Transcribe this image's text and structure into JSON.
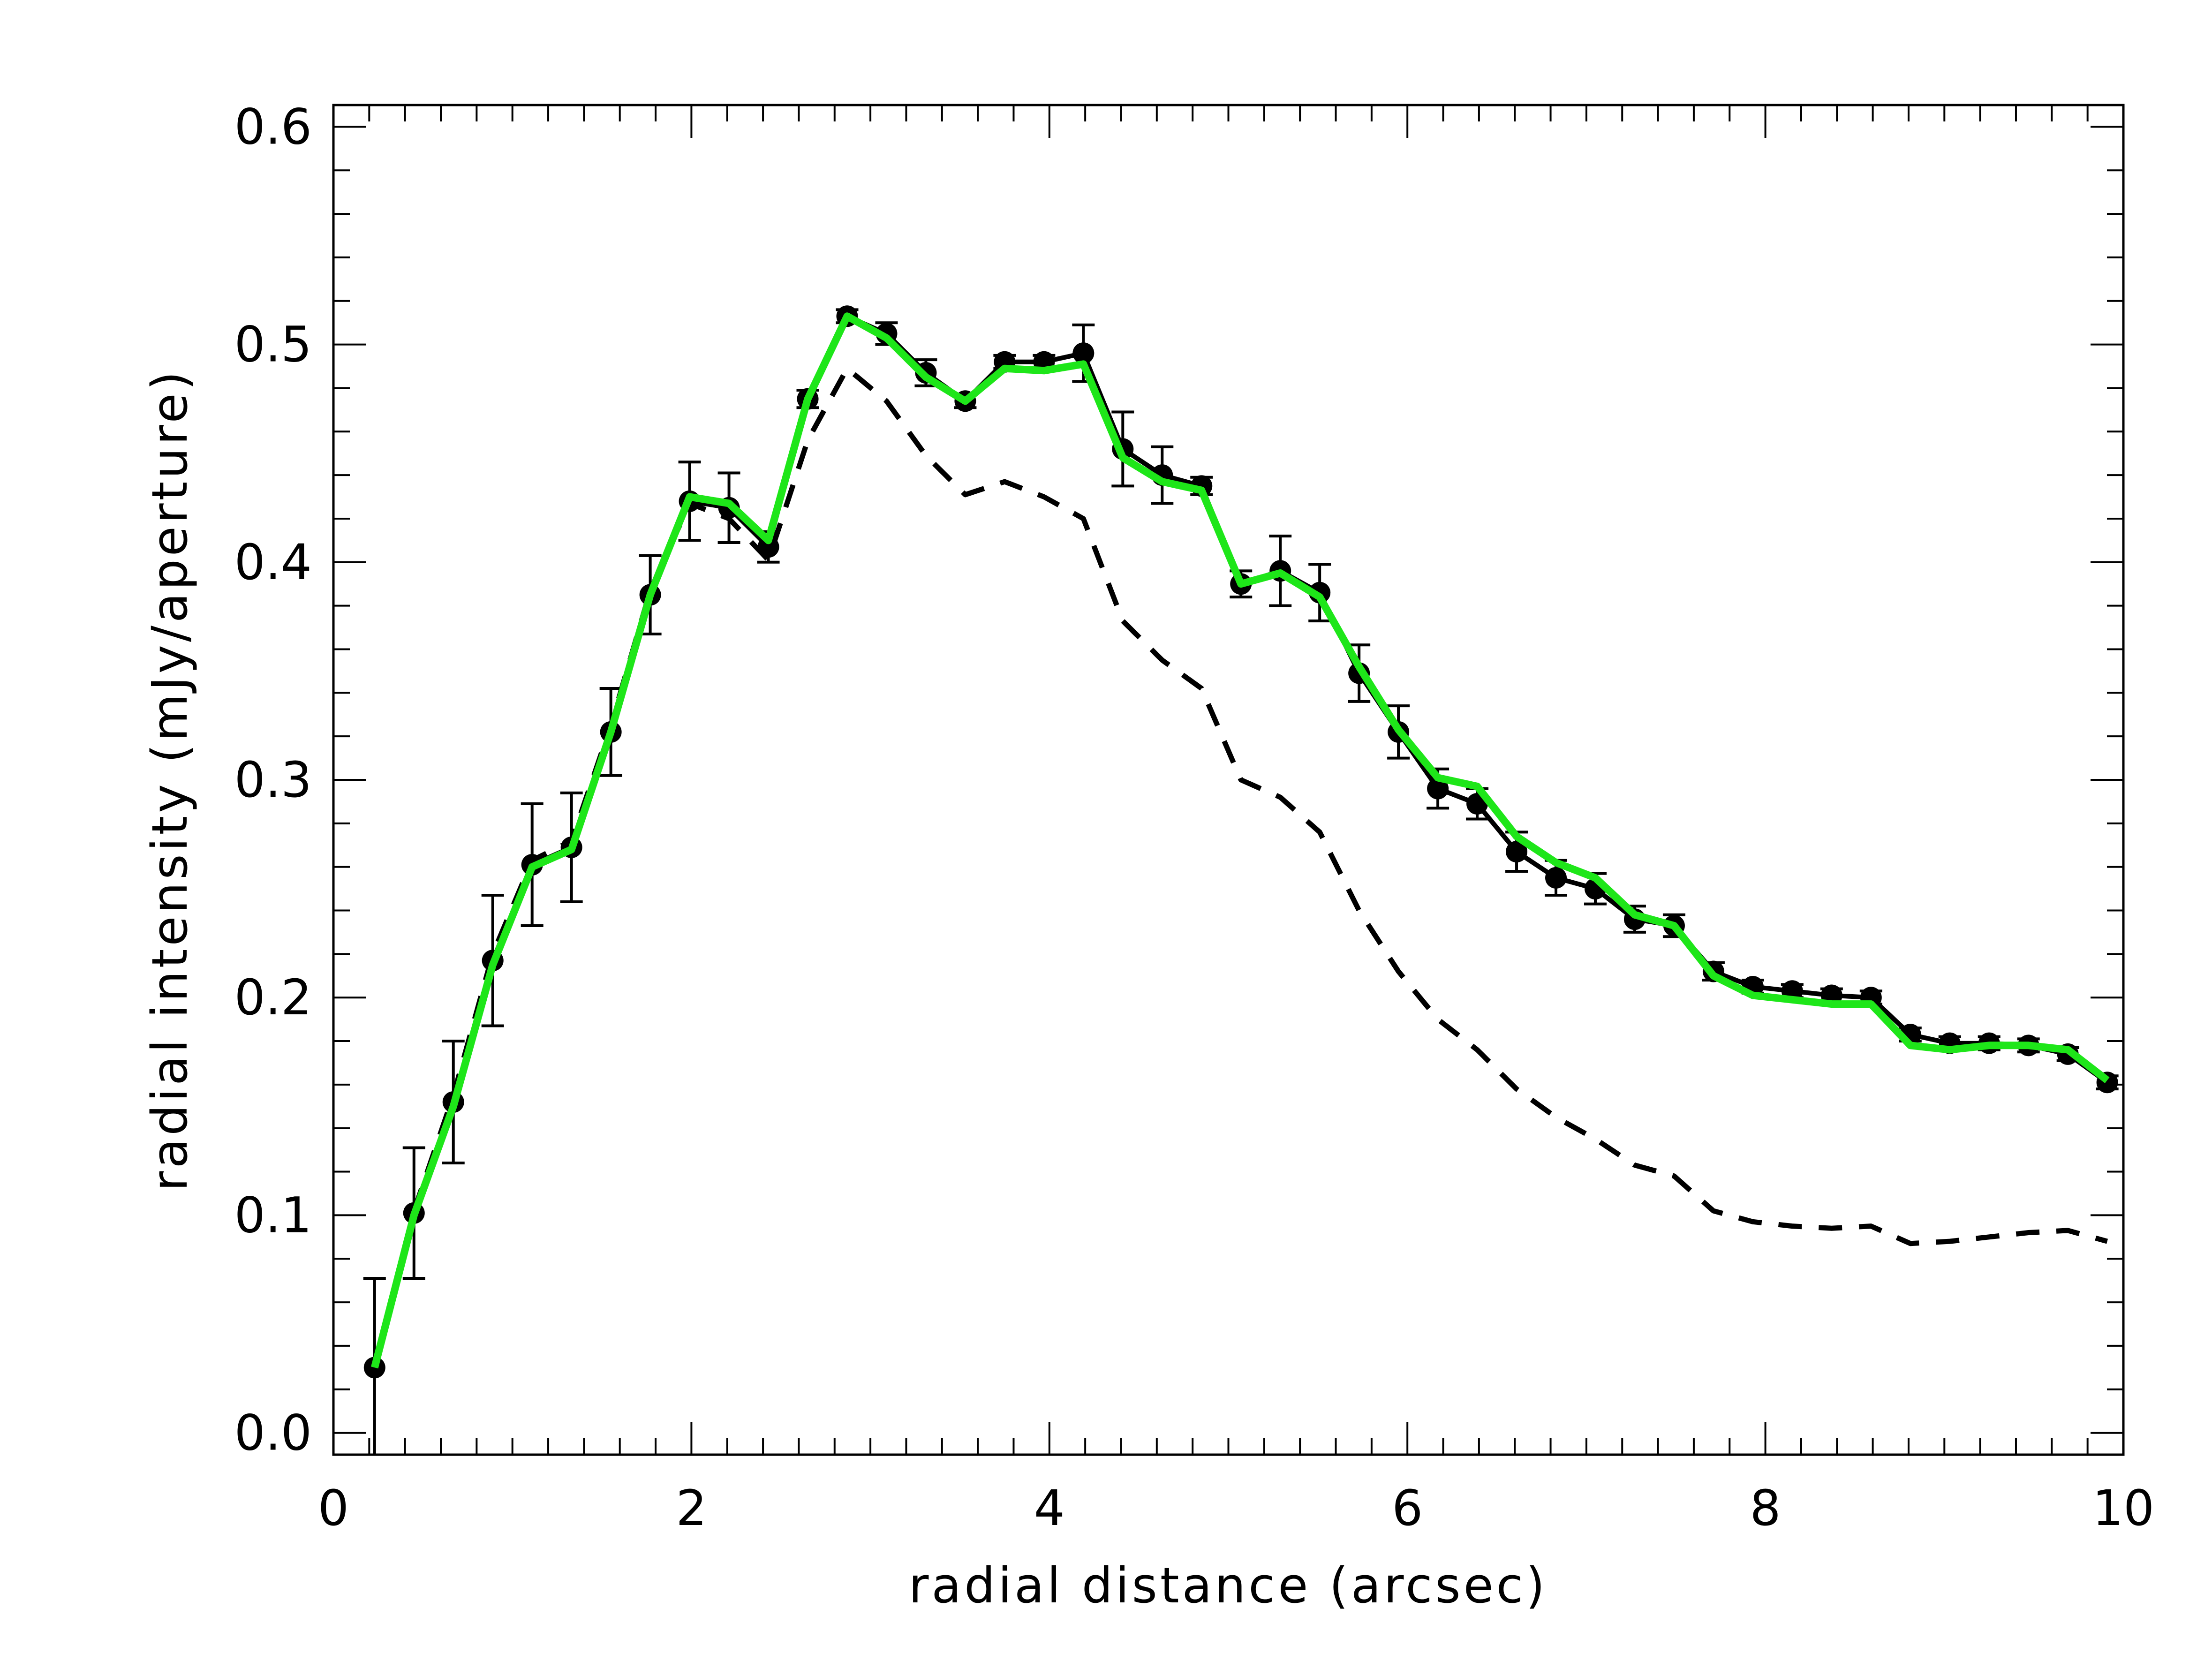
{
  "chart_data": {
    "type": "line",
    "xlabel": "radial distance (arcsec)",
    "ylabel": "radial intensity (mJy/aperture)",
    "xlim": [
      0,
      10
    ],
    "ylim": [
      -0.01,
      0.61
    ],
    "x_ticks": [
      0,
      2,
      4,
      6,
      8,
      10
    ],
    "x_tick_labels": [
      "0",
      "2",
      "4",
      "6",
      "8",
      "10"
    ],
    "y_ticks": [
      0.0,
      0.1,
      0.2,
      0.3,
      0.4,
      0.5,
      0.6
    ],
    "y_tick_labels": [
      "0.0",
      "0.1",
      "0.2",
      "0.3",
      "0.4",
      "0.5",
      "0.6"
    ],
    "grid": false,
    "legend": "none",
    "series": [
      {
        "style": "solid-black-with-markers-and-errorbars",
        "color": "#000000",
        "x": [
          0.23,
          0.45,
          0.67,
          0.89,
          1.11,
          1.33,
          1.55,
          1.77,
          1.99,
          2.21,
          2.43,
          2.65,
          2.87,
          3.09,
          3.31,
          3.53,
          3.75,
          3.97,
          4.19,
          4.41,
          4.63,
          4.85,
          5.07,
          5.29,
          5.51,
          5.73,
          5.95,
          6.17,
          6.39,
          6.61,
          6.83,
          7.05,
          7.27,
          7.49,
          7.71,
          7.93,
          8.15,
          8.37,
          8.59,
          8.81,
          9.03,
          9.25,
          9.47,
          9.69,
          9.91
        ],
        "y": [
          0.03,
          0.101,
          0.152,
          0.217,
          0.261,
          0.269,
          0.322,
          0.385,
          0.428,
          0.425,
          0.407,
          0.475,
          0.513,
          0.505,
          0.487,
          0.474,
          0.492,
          0.492,
          0.496,
          0.452,
          0.44,
          0.435,
          0.39,
          0.396,
          0.386,
          0.349,
          0.322,
          0.296,
          0.289,
          0.267,
          0.255,
          0.25,
          0.236,
          0.233,
          0.212,
          0.205,
          0.203,
          0.201,
          0.2,
          0.183,
          0.179,
          0.179,
          0.178,
          0.174,
          0.161
        ],
        "yerr": [
          0.041,
          0.03,
          0.028,
          0.03,
          0.028,
          0.025,
          0.02,
          0.018,
          0.018,
          0.016,
          0.007,
          0.004,
          0.003,
          0.005,
          0.006,
          0.003,
          0.003,
          0.003,
          0.013,
          0.017,
          0.013,
          0.004,
          0.006,
          0.016,
          0.013,
          0.013,
          0.012,
          0.009,
          0.007,
          0.009,
          0.008,
          0.007,
          0.006,
          0.005,
          0.004,
          0.003,
          0.003,
          0.003,
          0.003,
          0.003,
          0.003,
          0.003,
          0.003,
          0.003,
          0.003
        ]
      },
      {
        "style": "solid-green",
        "color": "#1ee619",
        "x": [
          0.23,
          0.45,
          0.67,
          0.89,
          1.11,
          1.33,
          1.55,
          1.77,
          1.99,
          2.21,
          2.43,
          2.65,
          2.87,
          3.09,
          3.31,
          3.53,
          3.75,
          3.97,
          4.19,
          4.41,
          4.63,
          4.85,
          5.07,
          5.29,
          5.51,
          5.73,
          5.95,
          6.17,
          6.39,
          6.61,
          6.83,
          7.05,
          7.27,
          7.49,
          7.71,
          7.93,
          8.15,
          8.37,
          8.59,
          8.81,
          9.03,
          9.25,
          9.47,
          9.69,
          9.91
        ],
        "y": [
          0.03,
          0.1,
          0.15,
          0.215,
          0.26,
          0.268,
          0.322,
          0.385,
          0.43,
          0.427,
          0.41,
          0.475,
          0.513,
          0.503,
          0.485,
          0.474,
          0.489,
          0.488,
          0.491,
          0.448,
          0.437,
          0.433,
          0.39,
          0.395,
          0.384,
          0.352,
          0.323,
          0.301,
          0.297,
          0.274,
          0.262,
          0.255,
          0.238,
          0.233,
          0.21,
          0.201,
          0.199,
          0.197,
          0.197,
          0.178,
          0.176,
          0.178,
          0.178,
          0.176,
          0.162
        ]
      },
      {
        "style": "dashed-black",
        "color": "#000000",
        "x": [
          0.23,
          0.45,
          0.67,
          0.89,
          1.11,
          1.33,
          1.55,
          1.77,
          1.99,
          2.21,
          2.43,
          2.65,
          2.87,
          3.09,
          3.31,
          3.53,
          3.75,
          3.97,
          4.19,
          4.41,
          4.63,
          4.85,
          5.07,
          5.29,
          5.51,
          5.73,
          5.95,
          6.17,
          6.39,
          6.61,
          6.83,
          7.05,
          7.27,
          7.49,
          7.71,
          7.93,
          8.15,
          8.37,
          8.59,
          8.81,
          9.03,
          9.25,
          9.47,
          9.69,
          9.91
        ],
        "y": [
          0.03,
          0.102,
          0.155,
          0.22,
          0.263,
          0.272,
          0.325,
          0.387,
          0.427,
          0.42,
          0.401,
          0.456,
          0.489,
          0.474,
          0.449,
          0.431,
          0.437,
          0.43,
          0.42,
          0.373,
          0.355,
          0.342,
          0.3,
          0.292,
          0.276,
          0.24,
          0.212,
          0.19,
          0.176,
          0.158,
          0.145,
          0.135,
          0.123,
          0.118,
          0.102,
          0.097,
          0.095,
          0.094,
          0.095,
          0.087,
          0.088,
          0.09,
          0.092,
          0.093,
          0.088
        ]
      }
    ]
  }
}
